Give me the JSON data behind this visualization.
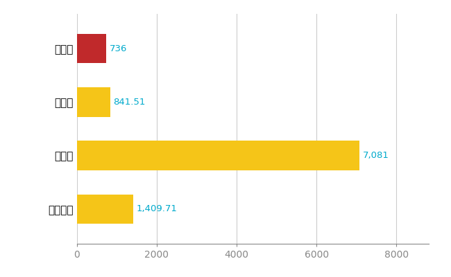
{
  "categories": [
    "読谷村",
    "県平均",
    "県最大",
    "全国平均"
  ],
  "values": [
    736,
    841.51,
    7081,
    1409.71
  ],
  "labels": [
    "736",
    "841.51",
    "7,081",
    "1,409.71"
  ],
  "bar_colors": [
    "#c0292b",
    "#f5c518",
    "#f5c518",
    "#f5c518"
  ],
  "xlim": [
    0,
    8800
  ],
  "xticks": [
    0,
    2000,
    4000,
    6000,
    8000
  ],
  "background_color": "#ffffff",
  "label_color": "#00aacc",
  "grid_color": "#cccccc",
  "label_fontsize": 9.5,
  "tick_fontsize": 10,
  "ytick_fontsize": 11,
  "bar_height": 0.55
}
